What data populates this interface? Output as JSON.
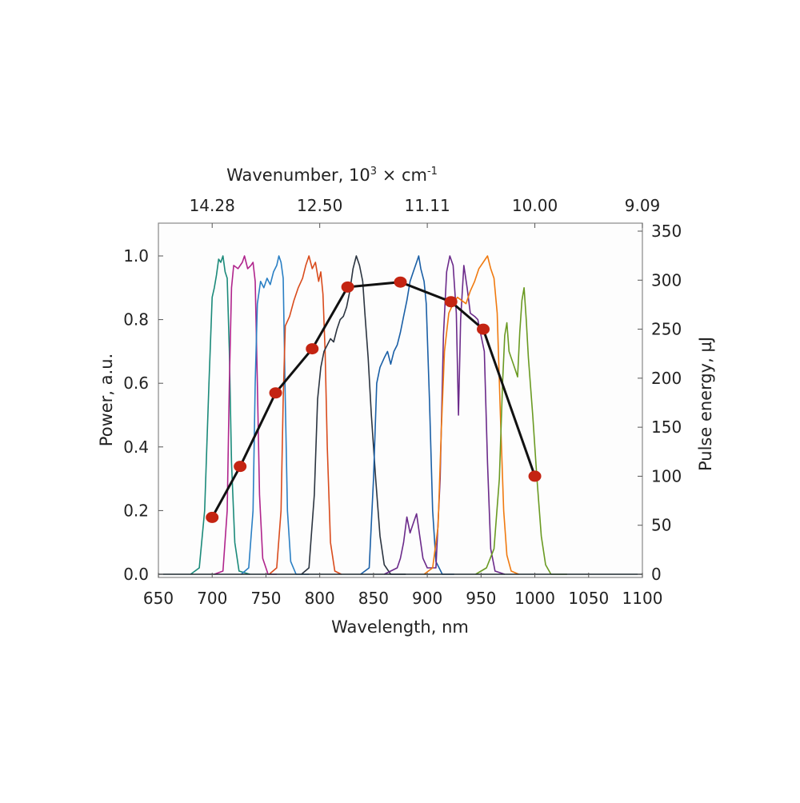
{
  "chart_data": {
    "type": "line",
    "xlabel": "Wavelength, nm",
    "xlim": [
      650,
      1100
    ],
    "x_ticks": [
      "650",
      "700",
      "750",
      "800",
      "850",
      "900",
      "950",
      "1000",
      "1050",
      "1100"
    ],
    "ylabel_left": "Power, a.u.",
    "ylim_left": [
      0,
      1.1
    ],
    "y_ticks_left": [
      "0.0",
      "0.2",
      "0.4",
      "0.6",
      "0.8",
      "1.0"
    ],
    "ylabel_right": "Pulse energy, µJ",
    "ylim_right": [
      0,
      350
    ],
    "y_ticks_right": [
      "0",
      "50",
      "100",
      "150",
      "200",
      "250",
      "300",
      "350"
    ],
    "top_axis": {
      "label_main": "Wavenumber, 10",
      "label_sup": "3",
      "label_tail": " × cm",
      "label_sup2": "-1",
      "ticks": [
        {
          "label": "14.28",
          "wavelength": 700
        },
        {
          "label": "12.50",
          "wavelength": 800
        },
        {
          "label": "11.11",
          "wavelength": 900
        },
        {
          "label": "10.00",
          "wavelength": 1000
        },
        {
          "label": "9.09",
          "wavelength": 1100
        }
      ]
    },
    "grid": false,
    "spectra": [
      {
        "color": "#1b8a7a",
        "points": [
          [
            680,
            0
          ],
          [
            688,
            0.02
          ],
          [
            693,
            0.2
          ],
          [
            697,
            0.6
          ],
          [
            700,
            0.87
          ],
          [
            702,
            0.9
          ],
          [
            704,
            0.94
          ],
          [
            706,
            0.99
          ],
          [
            708,
            0.98
          ],
          [
            710,
            1.0
          ],
          [
            712,
            0.95
          ],
          [
            714,
            0.93
          ],
          [
            716,
            0.7
          ],
          [
            718,
            0.35
          ],
          [
            721,
            0.1
          ],
          [
            725,
            0.01
          ],
          [
            735,
            0
          ]
        ]
      },
      {
        "color": "#b0248c",
        "points": [
          [
            702,
            0
          ],
          [
            710,
            0.01
          ],
          [
            714,
            0.2
          ],
          [
            716,
            0.6
          ],
          [
            718,
            0.9
          ],
          [
            720,
            0.97
          ],
          [
            724,
            0.96
          ],
          [
            728,
            0.98
          ],
          [
            730,
            1.0
          ],
          [
            733,
            0.96
          ],
          [
            736,
            0.97
          ],
          [
            738,
            0.98
          ],
          [
            740,
            0.92
          ],
          [
            742,
            0.6
          ],
          [
            744,
            0.25
          ],
          [
            747,
            0.05
          ],
          [
            752,
            0
          ],
          [
            760,
            0
          ]
        ]
      },
      {
        "color": "#2a7fc4",
        "points": [
          [
            727,
            0
          ],
          [
            734,
            0.02
          ],
          [
            738,
            0.2
          ],
          [
            740,
            0.6
          ],
          [
            742,
            0.85
          ],
          [
            745,
            0.92
          ],
          [
            748,
            0.9
          ],
          [
            751,
            0.93
          ],
          [
            754,
            0.91
          ],
          [
            757,
            0.95
          ],
          [
            760,
            0.97
          ],
          [
            762,
            1.0
          ],
          [
            764,
            0.98
          ],
          [
            766,
            0.93
          ],
          [
            768,
            0.55
          ],
          [
            770,
            0.2
          ],
          [
            773,
            0.04
          ],
          [
            778,
            0
          ],
          [
            790,
            0
          ]
        ]
      },
      {
        "color": "#d94b1c",
        "points": [
          [
            753,
            0
          ],
          [
            760,
            0.02
          ],
          [
            764,
            0.2
          ],
          [
            766,
            0.55
          ],
          [
            768,
            0.78
          ],
          [
            772,
            0.81
          ],
          [
            776,
            0.86
          ],
          [
            780,
            0.9
          ],
          [
            784,
            0.93
          ],
          [
            787,
            0.97
          ],
          [
            790,
            1.0
          ],
          [
            793,
            0.96
          ],
          [
            796,
            0.98
          ],
          [
            799,
            0.92
          ],
          [
            801,
            0.95
          ],
          [
            803,
            0.88
          ],
          [
            805,
            0.7
          ],
          [
            807,
            0.4
          ],
          [
            810,
            0.1
          ],
          [
            814,
            0.01
          ],
          [
            820,
            0
          ]
        ]
      },
      {
        "color": "#2b3440",
        "points": [
          [
            783,
            0
          ],
          [
            790,
            0.02
          ],
          [
            795,
            0.25
          ],
          [
            798,
            0.55
          ],
          [
            801,
            0.65
          ],
          [
            804,
            0.7
          ],
          [
            807,
            0.72
          ],
          [
            810,
            0.74
          ],
          [
            813,
            0.73
          ],
          [
            816,
            0.77
          ],
          [
            819,
            0.8
          ],
          [
            822,
            0.81
          ],
          [
            825,
            0.84
          ],
          [
            828,
            0.89
          ],
          [
            831,
            0.96
          ],
          [
            834,
            1.0
          ],
          [
            837,
            0.97
          ],
          [
            840,
            0.92
          ],
          [
            842,
            0.82
          ],
          [
            845,
            0.68
          ],
          [
            848,
            0.5
          ],
          [
            852,
            0.3
          ],
          [
            856,
            0.12
          ],
          [
            860,
            0.03
          ],
          [
            866,
            0
          ],
          [
            880,
            0
          ]
        ]
      },
      {
        "color": "#1a5fa6",
        "points": [
          [
            838,
            0
          ],
          [
            846,
            0.02
          ],
          [
            850,
            0.3
          ],
          [
            853,
            0.6
          ],
          [
            856,
            0.65
          ],
          [
            860,
            0.68
          ],
          [
            863,
            0.7
          ],
          [
            866,
            0.66
          ],
          [
            869,
            0.7
          ],
          [
            872,
            0.72
          ],
          [
            875,
            0.76
          ],
          [
            878,
            0.81
          ],
          [
            881,
            0.86
          ],
          [
            884,
            0.92
          ],
          [
            887,
            0.95
          ],
          [
            890,
            0.98
          ],
          [
            892,
            1.0
          ],
          [
            894,
            0.96
          ],
          [
            897,
            0.92
          ],
          [
            899,
            0.85
          ],
          [
            902,
            0.55
          ],
          [
            905,
            0.2
          ],
          [
            908,
            0.04
          ],
          [
            914,
            0
          ],
          [
            925,
            0
          ]
        ]
      },
      {
        "color": "#6b2a8a",
        "points": [
          [
            860,
            0
          ],
          [
            872,
            0.02
          ],
          [
            875,
            0.05
          ],
          [
            878,
            0.1
          ],
          [
            881,
            0.18
          ],
          [
            884,
            0.13
          ],
          [
            887,
            0.16
          ],
          [
            890,
            0.19
          ],
          [
            893,
            0.12
          ],
          [
            896,
            0.05
          ],
          [
            900,
            0.02
          ],
          [
            908,
            0.02
          ],
          [
            912,
            0.3
          ],
          [
            915,
            0.75
          ],
          [
            918,
            0.95
          ],
          [
            921,
            1.0
          ],
          [
            924,
            0.97
          ],
          [
            927,
            0.82
          ],
          [
            929,
            0.5
          ],
          [
            931,
            0.8
          ],
          [
            934,
            0.97
          ],
          [
            937,
            0.9
          ],
          [
            940,
            0.82
          ],
          [
            944,
            0.81
          ],
          [
            947,
            0.8
          ],
          [
            950,
            0.75
          ],
          [
            953,
            0.7
          ],
          [
            956,
            0.35
          ],
          [
            959,
            0.08
          ],
          [
            963,
            0.01
          ],
          [
            972,
            0
          ]
        ]
      },
      {
        "color": "#f07a10",
        "points": [
          [
            897,
            0
          ],
          [
            905,
            0.02
          ],
          [
            910,
            0.15
          ],
          [
            913,
            0.45
          ],
          [
            916,
            0.7
          ],
          [
            920,
            0.82
          ],
          [
            924,
            0.85
          ],
          [
            928,
            0.87
          ],
          [
            932,
            0.86
          ],
          [
            936,
            0.85
          ],
          [
            940,
            0.89
          ],
          [
            944,
            0.92
          ],
          [
            948,
            0.96
          ],
          [
            952,
            0.98
          ],
          [
            956,
            1.0
          ],
          [
            959,
            0.96
          ],
          [
            962,
            0.93
          ],
          [
            965,
            0.82
          ],
          [
            968,
            0.5
          ],
          [
            971,
            0.2
          ],
          [
            974,
            0.06
          ],
          [
            978,
            0.01
          ],
          [
            985,
            0
          ]
        ]
      },
      {
        "color": "#6a9a22",
        "points": [
          [
            945,
            0
          ],
          [
            955,
            0.02
          ],
          [
            962,
            0.08
          ],
          [
            967,
            0.3
          ],
          [
            970,
            0.6
          ],
          [
            972,
            0.75
          ],
          [
            974,
            0.79
          ],
          [
            976,
            0.7
          ],
          [
            978,
            0.68
          ],
          [
            980,
            0.66
          ],
          [
            982,
            0.64
          ],
          [
            984,
            0.62
          ],
          [
            986,
            0.76
          ],
          [
            988,
            0.86
          ],
          [
            990,
            0.9
          ],
          [
            992,
            0.8
          ],
          [
            994,
            0.68
          ],
          [
            998,
            0.5
          ],
          [
            1002,
            0.3
          ],
          [
            1006,
            0.12
          ],
          [
            1010,
            0.03
          ],
          [
            1015,
            0
          ],
          [
            1030,
            0
          ]
        ]
      },
      {
        "color": "#1f2a30",
        "points": [
          [
            650,
            0
          ],
          [
            1100,
            0
          ]
        ]
      }
    ],
    "pulse_energy_series": {
      "color": "#c42412",
      "line_color": "#111111",
      "points": [
        [
          700,
          58
        ],
        [
          726,
          110
        ],
        [
          759,
          185
        ],
        [
          793,
          230
        ],
        [
          826,
          293
        ],
        [
          875,
          298
        ],
        [
          922,
          278
        ],
        [
          952,
          250
        ],
        [
          1000,
          100
        ]
      ]
    }
  }
}
